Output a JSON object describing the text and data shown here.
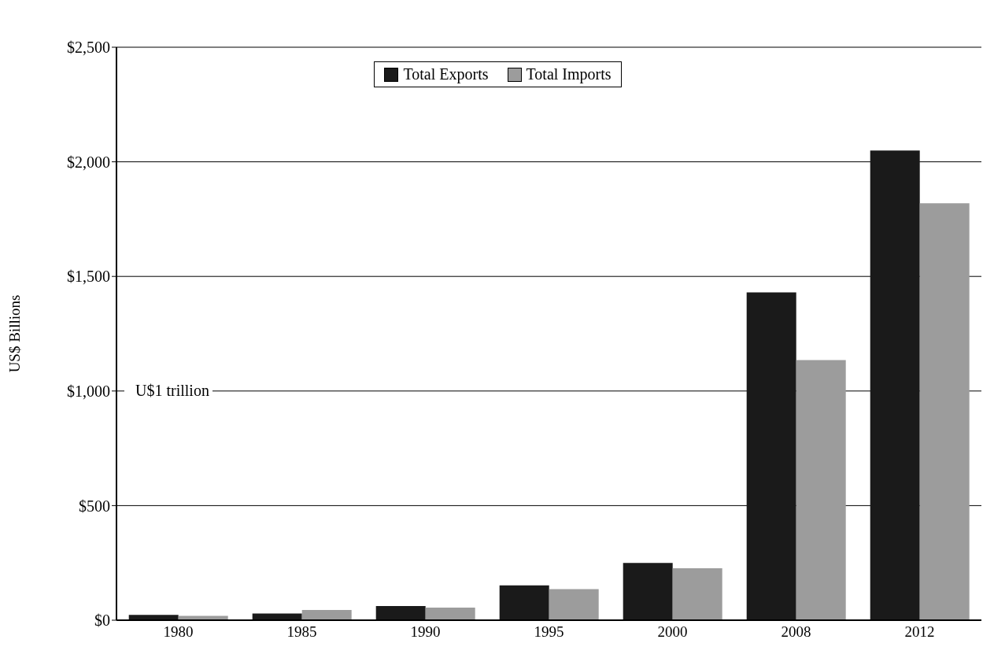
{
  "chart_data": {
    "type": "bar",
    "ylabel": "US$ Billions",
    "categories": [
      "1980",
      "1985",
      "1990",
      "1995",
      "2000",
      "2008",
      "2012"
    ],
    "series": [
      {
        "name": "Total Exports",
        "color": "#1a1a1a",
        "values": [
          23,
          29,
          62,
          152,
          250,
          1430,
          2049
        ]
      },
      {
        "name": "Total Imports",
        "color": "#9c9c9c",
        "values": [
          19,
          45,
          55,
          136,
          227,
          1135,
          1819
        ]
      }
    ],
    "ylim": [
      0,
      2500
    ],
    "yticks": [
      {
        "value": 0,
        "label": "$0"
      },
      {
        "value": 500,
        "label": "$500"
      },
      {
        "value": 1000,
        "label": "$1,000"
      },
      {
        "value": 1500,
        "label": "$1,500"
      },
      {
        "value": 2000,
        "label": "$2,000"
      },
      {
        "value": 2500,
        "label": "$2,500"
      }
    ],
    "annotations": [
      "U$1 trillion"
    ],
    "grid": "y",
    "legend": "top"
  }
}
